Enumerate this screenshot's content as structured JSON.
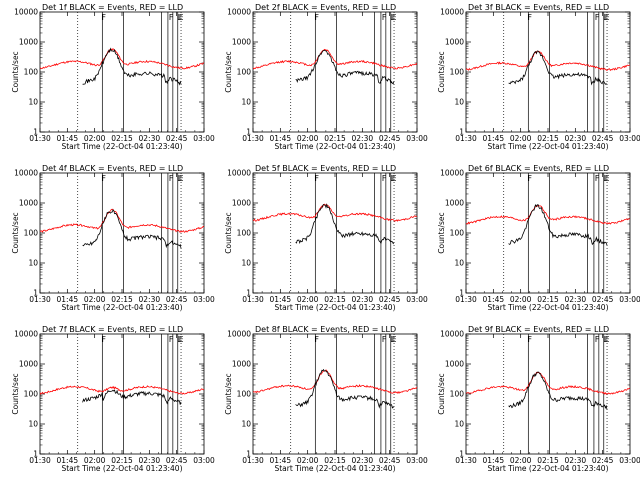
{
  "chart_data": {
    "type": "line",
    "layout": "3x3 grid",
    "colors": {
      "events": "#000000",
      "lld": "#ff0000",
      "axes": "#000000",
      "markers": "#000000"
    },
    "shared": {
      "ylabel": "Counts/sec",
      "xlabel": "Start Time (22-Oct-04 01:23:40)",
      "xticks": [
        "01:30",
        "01:45",
        "02:00",
        "02:15",
        "02:30",
        "02:45",
        "03:00"
      ],
      "xrange_minutes": [
        0,
        100
      ],
      "yticks": [
        "1",
        "10",
        "100",
        "1000",
        "10000"
      ],
      "ylim_log": [
        1,
        10000
      ],
      "vertical_lines_minutes": [
        38,
        51,
        74,
        78,
        81,
        84
      ],
      "event_start_minute": 26,
      "event_end_minute": 86,
      "markers": [
        {
          "label": "F",
          "minute": 37
        },
        {
          "label": "F",
          "minute": 78
        },
        {
          "label": "L",
          "minute": 83
        },
        {
          "label": "E",
          "minute": 84
        }
      ]
    },
    "panels": [
      {
        "title": "Det 1f BLACK = Events, RED = LLD",
        "flare_peak": 550,
        "lld_base": 180,
        "lld_peak": 620,
        "events_base": 45,
        "events_mid": 60
      },
      {
        "title": "Det 2f BLACK = Events, RED = LLD",
        "flare_peak": 520,
        "lld_base": 180,
        "lld_peak": 600,
        "events_base": 50,
        "events_mid": 62
      },
      {
        "title": "Det 3f BLACK = Events, RED = LLD",
        "flare_peak": 450,
        "lld_base": 160,
        "lld_peak": 520,
        "events_base": 40,
        "events_mid": 55
      },
      {
        "title": "Det 4f BLACK = Events, RED = LLD",
        "flare_peak": 550,
        "lld_base": 150,
        "lld_peak": 620,
        "events_base": 38,
        "events_mid": 50
      },
      {
        "title": "Det 5f BLACK = Events, RED = LLD",
        "flare_peak": 850,
        "lld_base": 350,
        "lld_peak": 950,
        "events_base": 50,
        "events_mid": 65
      },
      {
        "title": "Det 6f BLACK = Events, RED = LLD",
        "flare_peak": 800,
        "lld_base": 280,
        "lld_peak": 900,
        "events_base": 48,
        "events_mid": 60
      },
      {
        "title": "Det 7f BLACK = Events, RED = LLD",
        "flare_peak": 150,
        "lld_base": 140,
        "lld_peak": 200,
        "events_base": 60,
        "events_mid": 70
      },
      {
        "title": "Det 8f BLACK = Events, RED = LLD",
        "flare_peak": 600,
        "lld_base": 150,
        "lld_peak": 650,
        "events_base": 40,
        "events_mid": 52
      },
      {
        "title": "Det 9f BLACK = Events, RED = LLD",
        "flare_peak": 500,
        "lld_base": 140,
        "lld_peak": 560,
        "events_base": 38,
        "events_mid": 50
      }
    ]
  }
}
